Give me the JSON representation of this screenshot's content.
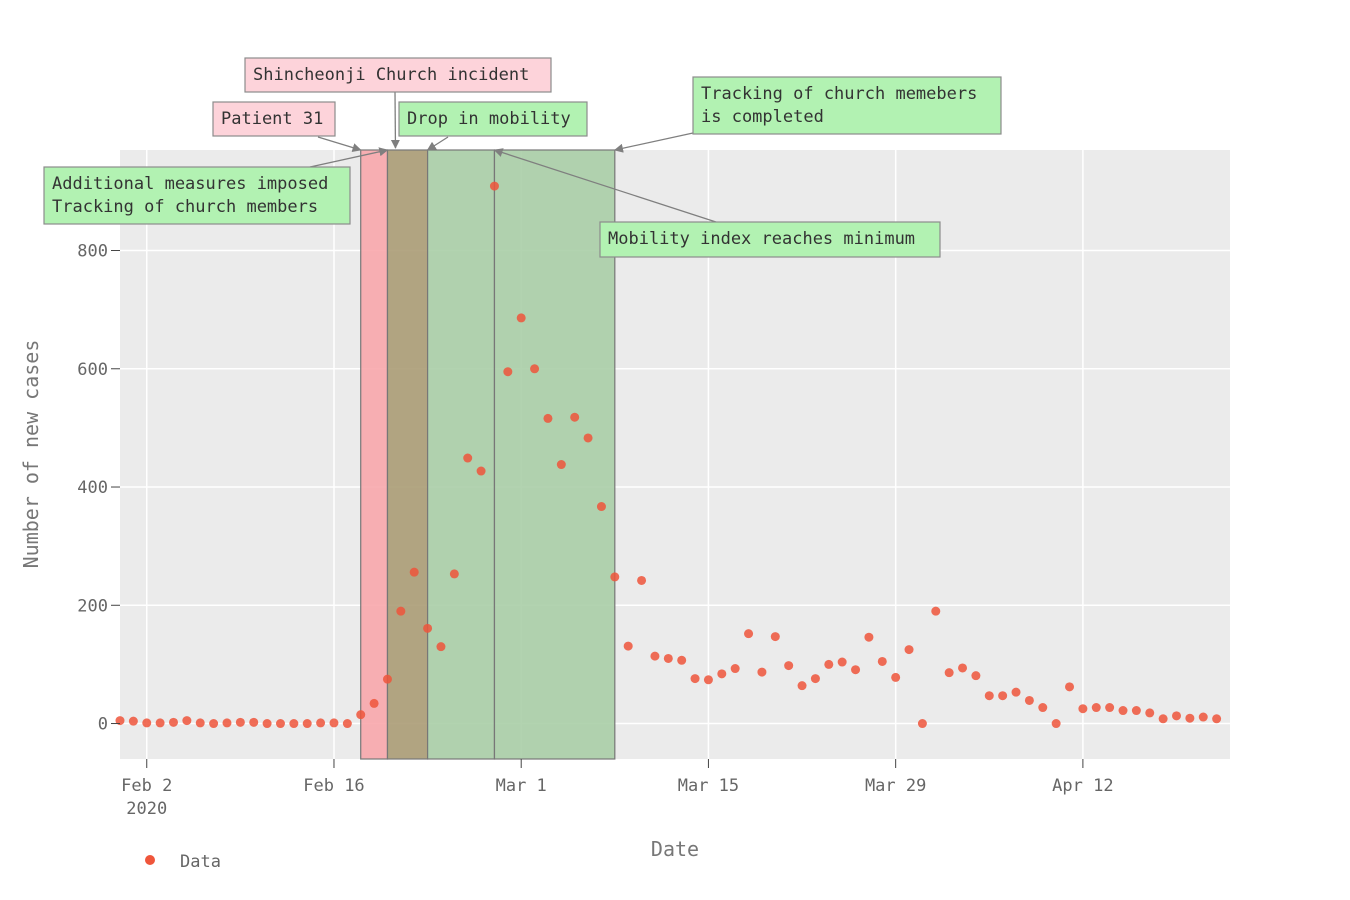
{
  "chart_data": {
    "type": "scatter",
    "xlabel": "Date",
    "ylabel": "Number of new cases",
    "x_start": "2020-01-31",
    "x_end": "2020-04-23",
    "ylim": [
      -60,
      970
    ],
    "x_ticks": [
      {
        "date": "2020-02-02",
        "label": "Feb 2",
        "sublabel": "2020"
      },
      {
        "date": "2020-02-16",
        "label": "Feb 16"
      },
      {
        "date": "2020-03-01",
        "label": "Mar 1"
      },
      {
        "date": "2020-03-15",
        "label": "Mar 15"
      },
      {
        "date": "2020-03-29",
        "label": "Mar 29"
      },
      {
        "date": "2020-04-12",
        "label": "Apr 12"
      }
    ],
    "y_ticks": [
      0,
      200,
      400,
      600,
      800
    ],
    "grid": true,
    "legend": {
      "position": "bottom-left",
      "entries": [
        "Data"
      ]
    },
    "series": [
      {
        "name": "Data",
        "color": "#ef553b",
        "start_date": "2020-01-31",
        "values": [
          5,
          4,
          1,
          1,
          2,
          5,
          1,
          0,
          1,
          2,
          2,
          0,
          0,
          0,
          0,
          1,
          1,
          0,
          15,
          34,
          75,
          190,
          256,
          161,
          130,
          253,
          449,
          427,
          909,
          595,
          686,
          600,
          516,
          438,
          518,
          483,
          367,
          248,
          131,
          242,
          114,
          110,
          107,
          76,
          74,
          84,
          93,
          152,
          87,
          147,
          98,
          64,
          76,
          100,
          104,
          91,
          146,
          105,
          78,
          125,
          0,
          190,
          86,
          94,
          81,
          47,
          47,
          53,
          39,
          27,
          0,
          62,
          25,
          27,
          27,
          22,
          22,
          18,
          8,
          13,
          9,
          11,
          8
        ]
      }
    ],
    "shaded_regions": [
      {
        "start": "2020-02-18",
        "end": "2020-02-20",
        "color": "#f8a5aa"
      },
      {
        "start": "2020-02-20",
        "end": "2020-02-23",
        "color": "#a99a72"
      },
      {
        "start": "2020-02-23",
        "end": "2020-02-28",
        "color": "#a7cda5"
      },
      {
        "start": "2020-02-28",
        "end": "2020-03-08",
        "color": "#a7cda5"
      }
    ],
    "annotations": [
      {
        "key": "patient31",
        "lines": [
          "Patient 31"
        ],
        "kind": "red",
        "target": "2020-02-18"
      },
      {
        "key": "church",
        "lines": [
          "Shincheonji Church incident"
        ],
        "kind": "red",
        "target": "2020-02-20"
      },
      {
        "key": "drop",
        "lines": [
          "Drop in mobility"
        ],
        "kind": "green",
        "target": "2020-02-23"
      },
      {
        "key": "tracking",
        "lines": [
          "Tracking of church memebers",
          "is completed"
        ],
        "kind": "green",
        "target": "2020-03-08"
      },
      {
        "key": "measures",
        "lines": [
          "Additional measures imposed",
          "Tracking of church members"
        ],
        "kind": "green",
        "target": "2020-02-20"
      },
      {
        "key": "minimum",
        "lines": [
          "Mobility index reaches minimum"
        ],
        "kind": "green",
        "target": "2020-02-28"
      }
    ]
  },
  "colors": {
    "plot_bg": "#ebebeb",
    "grid": "#ffffff",
    "ann_red_bg": "#fdd3da",
    "ann_green_bg": "#b2f2b2",
    "ann_border": "#8c8c8c",
    "arrow": "#7f7f7f"
  }
}
